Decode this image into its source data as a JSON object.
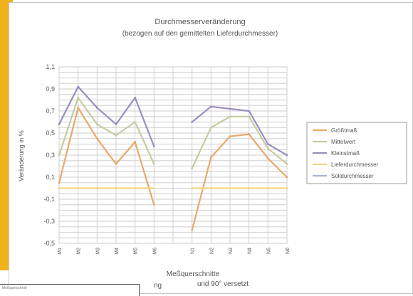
{
  "chart_data": {
    "type": "line",
    "title": "Durchmesserveränderung",
    "subtitle": "(bezogen auf den gemittelten Lieferdurchmesser)",
    "ylabel": "Veränderung in %",
    "xlabel": "Meßquerschnitte",
    "xlabel2": "und 90° versetzt",
    "ylim": [
      -0.5,
      1.1
    ],
    "yticks": [
      "1,1",
      "0,9",
      "0,7",
      "0,5",
      "0,3",
      "0,1",
      "-0,1",
      "-0,3",
      "-0,5"
    ],
    "grid": true,
    "legend_position": "right",
    "categories": [
      "M1",
      "M2",
      "M3",
      "M4",
      "M5",
      "M6",
      "",
      "N1",
      "N2",
      "N3",
      "N4",
      "N5",
      "N6"
    ],
    "series": [
      {
        "name": "Größtmaß",
        "color": "#e8a86b",
        "values": [
          0.05,
          0.73,
          0.45,
          0.22,
          0.42,
          -0.15,
          null,
          -0.38,
          0.28,
          0.47,
          0.49,
          0.27,
          0.1
        ]
      },
      {
        "name": "Mittelwert",
        "color": "#c4cca0",
        "values": [
          0.3,
          0.82,
          0.58,
          0.48,
          0.6,
          0.22,
          null,
          0.18,
          0.55,
          0.65,
          0.65,
          0.36,
          0.22
        ]
      },
      {
        "name": "Kleinstmaß",
        "color": "#9b8cc0",
        "values": [
          0.58,
          0.92,
          0.73,
          0.58,
          0.82,
          0.38,
          null,
          0.6,
          0.74,
          0.72,
          0.7,
          0.4,
          0.3
        ]
      },
      {
        "name": "Lieferdurchmesser",
        "color": "#f2d680",
        "values": [
          0.0,
          0.0,
          0.0,
          0.0,
          0.0,
          0.0,
          null,
          0.0,
          0.0,
          0.0,
          0.0,
          0.0,
          0.0
        ]
      },
      {
        "name": "Solldurchmesser",
        "color": "#a8b6d0",
        "values": [
          null,
          null,
          null,
          null,
          null,
          null,
          null,
          null,
          null,
          null,
          null,
          null,
          null
        ]
      }
    ]
  },
  "caption": {
    "small": "Meßquerschnitt",
    "tail": "ng",
    "overlap": "Meßquerschnitte"
  },
  "colors": {
    "accent_stripe": "#f0b21c",
    "grid": "#d7d7d7",
    "plot_bg": "#ffffff",
    "axis": "#8a8a8a"
  }
}
